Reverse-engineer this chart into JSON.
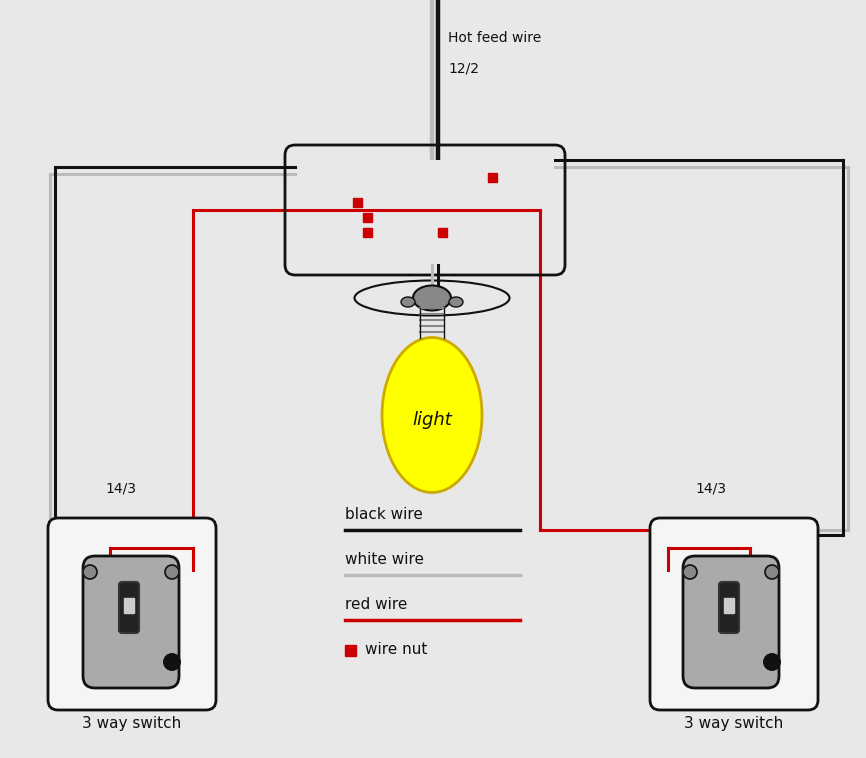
{
  "bg_color": "#e8e8e8",
  "wire_black": "#111111",
  "wire_white": "#bbbbbb",
  "wire_red": "#cc0000",
  "wire_nut_color": "#cc0000",
  "switch_box_color": "#f5f5f5",
  "switch_body_color": "#aaaaaa",
  "light_bulb_color": "#ffff00",
  "hot_feed_label": "Hot feed wire",
  "label_12_2": "12/2",
  "label_14_3_left": "14/3",
  "label_14_3_right": "14/3",
  "label_black": "black wire",
  "label_white": "white wire",
  "label_red": "red wire",
  "label_nut": "wire nut",
  "label_switch_left": "3 way switch",
  "label_switch_right": "3 way switch"
}
